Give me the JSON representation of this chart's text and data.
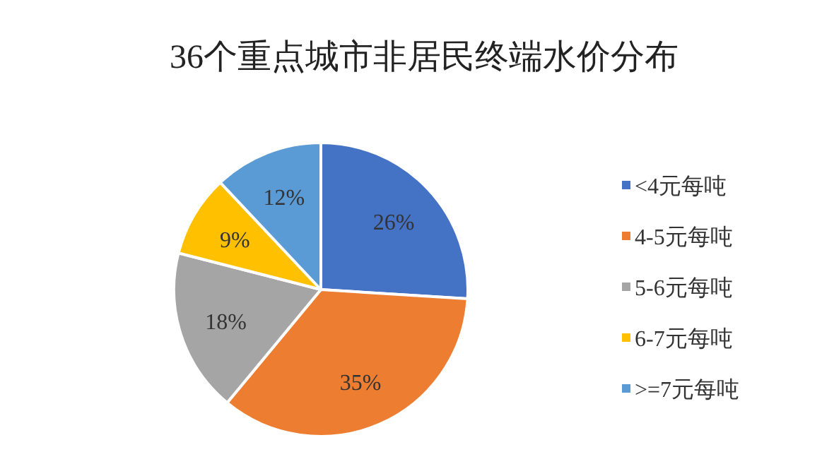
{
  "chart_data": {
    "type": "pie",
    "title": "36个重点城市非居民终端水价分布",
    "categories": [
      "<4元每吨",
      "4-5元每吨",
      "5-6元每吨",
      "6-7元每吨",
      ">=7元每吨"
    ],
    "values": [
      26,
      35,
      18,
      9,
      12
    ],
    "colors": [
      "#4472c4",
      "#ed7d31",
      "#a5a5a5",
      "#ffc000",
      "#5b9bd5"
    ],
    "value_labels": [
      "26%",
      "35%",
      "18%",
      "9%",
      "12%"
    ],
    "legend": "right"
  }
}
